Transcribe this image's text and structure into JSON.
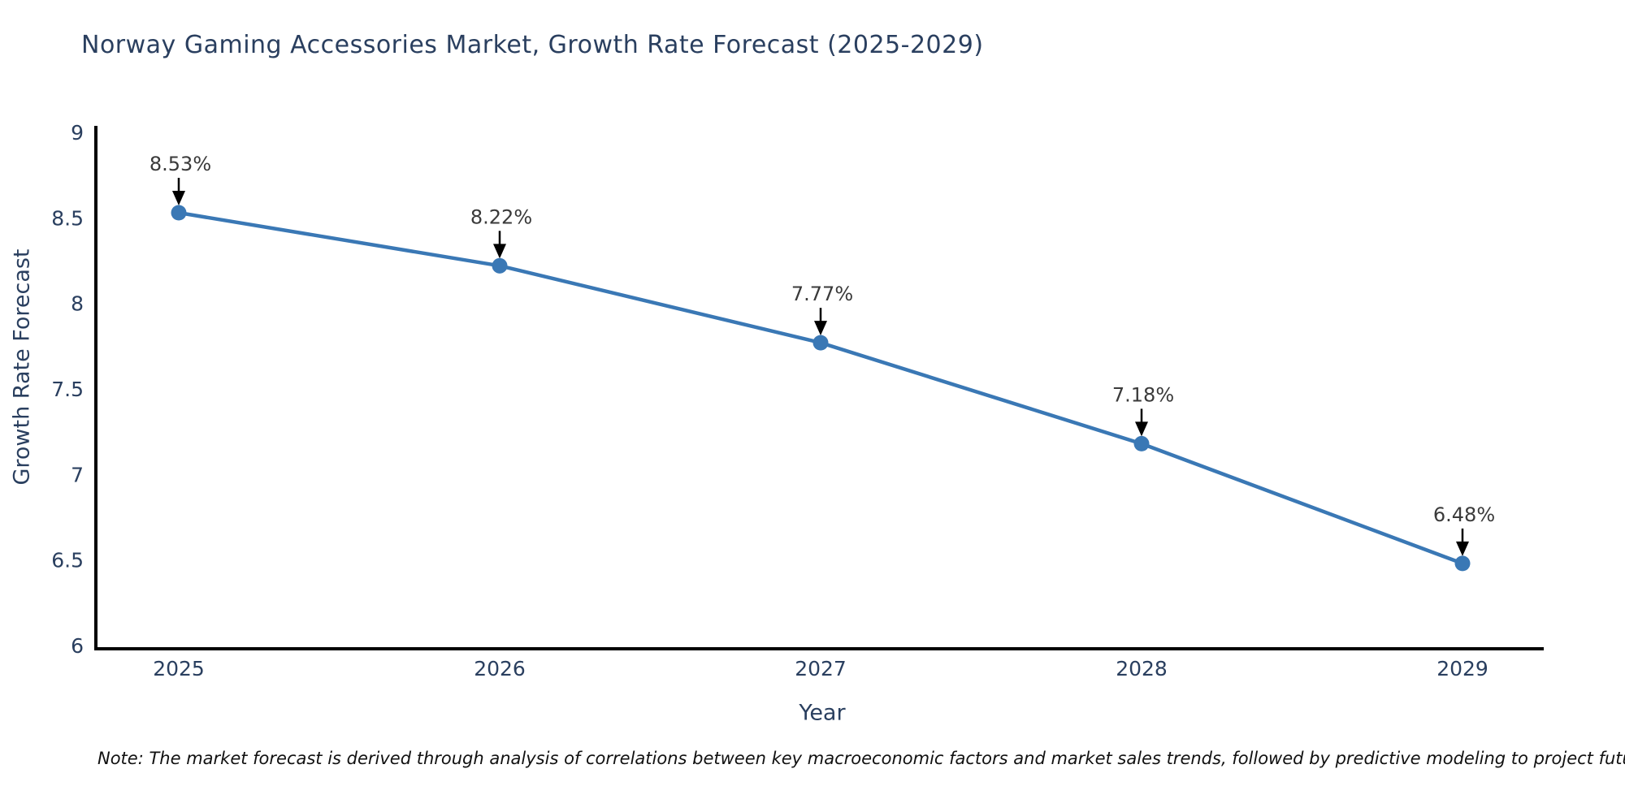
{
  "note": {
    "text": "Note: The market forecast is derived through analysis of correlations between key macroeconomic factors and market sales trends, followed by predictive modeling to project future sales"
  },
  "chart_data": {
    "type": "line",
    "title": "Norway Gaming Accessories Market, Growth Rate Forecast (2025-2029)",
    "xlabel": "Year",
    "ylabel": "Growth Rate Forecast",
    "x": [
      2025,
      2026,
      2027,
      2028,
      2029
    ],
    "x_tick_labels": [
      "2025",
      "2026",
      "2027",
      "2028",
      "2029"
    ],
    "values": [
      8.53,
      8.22,
      7.77,
      7.18,
      6.48
    ],
    "point_labels": [
      "8.53%",
      "8.22%",
      "7.77%",
      "7.18%",
      "6.48%"
    ],
    "ylim": [
      6,
      9
    ],
    "yticks": [
      6,
      6.5,
      7,
      7.5,
      8,
      8.5,
      9
    ],
    "y_tick_labels": [
      "6",
      "6.5",
      "7",
      "7.5",
      "8",
      "8.5",
      "9"
    ],
    "grid": false,
    "legend_position": "none",
    "colors": {
      "line": "#3a78b5",
      "marker": "#3a78b5",
      "axis_line": "#000000",
      "tick_label": "#2a3f5f",
      "annotation_text": "#3a3a3a",
      "annotation_arrow": "#000000",
      "title_text": "#2a3f5f"
    }
  }
}
